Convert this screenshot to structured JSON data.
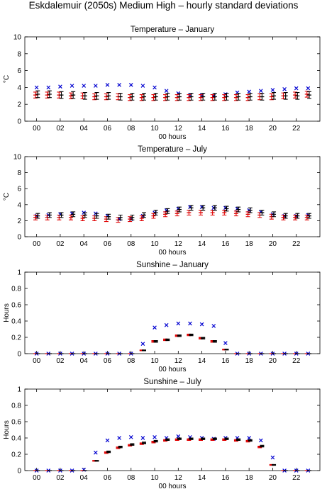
{
  "title": "Eskdalemuir (2050s) Medium High – hourly standard deviations",
  "colors": {
    "blue": "#0000d0",
    "red": "#e00000",
    "black": "#000000",
    "axis": "#000000"
  },
  "chart_data": [
    {
      "type": "scatter",
      "title": "Temperature – January",
      "xlabel": "00 hours",
      "ylabel": "°C",
      "xlim": [
        -1,
        24
      ],
      "ylim": [
        0,
        10
      ],
      "yticks": [
        0,
        2,
        4,
        6,
        8,
        10
      ],
      "xtick_labels": [
        "00",
        "02",
        "04",
        "06",
        "08",
        "10",
        "12",
        "14",
        "16",
        "18",
        "20",
        "22"
      ],
      "hours": [
        0,
        1,
        2,
        3,
        4,
        5,
        6,
        7,
        8,
        9,
        10,
        11,
        12,
        13,
        14,
        15,
        16,
        17,
        18,
        19,
        20,
        21,
        22,
        23
      ],
      "series": [
        {
          "marker": "x",
          "color": "blue",
          "values": [
            4.0,
            4.0,
            4.1,
            4.2,
            4.2,
            4.2,
            4.3,
            4.3,
            4.3,
            4.2,
            4.0,
            3.6,
            3.3,
            3.1,
            3.1,
            3.0,
            3.2,
            3.4,
            3.5,
            3.6,
            3.7,
            3.8,
            3.9,
            3.9
          ]
        },
        {
          "marker": "errorbar",
          "color": "red",
          "values": [
            3.1,
            3.1,
            3.1,
            3.0,
            3.0,
            2.9,
            2.9,
            2.9,
            2.8,
            2.8,
            2.8,
            2.8,
            2.8,
            2.8,
            2.8,
            2.8,
            2.8,
            2.8,
            2.8,
            2.9,
            2.9,
            3.0,
            3.1,
            3.2
          ],
          "errors": [
            0.35,
            0.35,
            0.35,
            0.35,
            0.35,
            0.35,
            0.35,
            0.35,
            0.35,
            0.35,
            0.35,
            0.35,
            0.35,
            0.35,
            0.35,
            0.35,
            0.35,
            0.35,
            0.35,
            0.35,
            0.35,
            0.35,
            0.35,
            0.35
          ]
        },
        {
          "marker": "errorbar",
          "color": "black",
          "values": [
            3.2,
            3.2,
            3.1,
            3.1,
            3.0,
            3.0,
            3.0,
            2.9,
            2.9,
            2.9,
            2.9,
            2.9,
            2.9,
            2.9,
            2.9,
            2.9,
            2.9,
            2.9,
            2.9,
            2.9,
            3.0,
            3.0,
            3.0,
            3.1
          ],
          "errors": [
            0.4,
            0.4,
            0.4,
            0.4,
            0.4,
            0.4,
            0.4,
            0.4,
            0.4,
            0.4,
            0.4,
            0.4,
            0.4,
            0.4,
            0.4,
            0.4,
            0.4,
            0.4,
            0.4,
            0.4,
            0.4,
            0.4,
            0.4,
            0.4
          ]
        }
      ]
    },
    {
      "type": "scatter",
      "title": "Temperature – July",
      "xlabel": "00 hours",
      "ylabel": "°C",
      "xlim": [
        -1,
        24
      ],
      "ylim": [
        0,
        10
      ],
      "yticks": [
        0,
        2,
        4,
        6,
        8,
        10
      ],
      "xtick_labels": [
        "00",
        "02",
        "04",
        "06",
        "08",
        "10",
        "12",
        "14",
        "16",
        "18",
        "20",
        "22"
      ],
      "hours": [
        0,
        1,
        2,
        3,
        4,
        5,
        6,
        7,
        8,
        9,
        10,
        11,
        12,
        13,
        14,
        15,
        16,
        17,
        18,
        19,
        20,
        21,
        22,
        23
      ],
      "series": [
        {
          "marker": "x",
          "color": "blue",
          "values": [
            2.6,
            2.7,
            2.8,
            2.9,
            3.0,
            2.9,
            2.6,
            2.2,
            2.2,
            2.6,
            3.0,
            3.3,
            3.5,
            3.7,
            3.7,
            3.6,
            3.6,
            3.5,
            3.3,
            3.1,
            2.8,
            2.6,
            2.6,
            2.7
          ]
        },
        {
          "marker": "errorbar",
          "color": "red",
          "values": [
            2.4,
            2.4,
            2.4,
            2.4,
            2.3,
            2.3,
            2.2,
            2.1,
            2.2,
            2.3,
            2.6,
            2.8,
            2.9,
            3.0,
            3.0,
            3.0,
            3.0,
            2.9,
            2.8,
            2.7,
            2.5,
            2.4,
            2.4,
            2.4
          ],
          "errors": [
            0.3,
            0.3,
            0.3,
            0.3,
            0.3,
            0.3,
            0.3,
            0.3,
            0.3,
            0.3,
            0.3,
            0.3,
            0.3,
            0.3,
            0.3,
            0.3,
            0.3,
            0.3,
            0.3,
            0.3,
            0.3,
            0.3,
            0.3,
            0.3
          ]
        },
        {
          "marker": "errorbar",
          "color": "black",
          "values": [
            2.6,
            2.7,
            2.7,
            2.8,
            2.7,
            2.6,
            2.5,
            2.4,
            2.4,
            2.7,
            3.0,
            3.2,
            3.4,
            3.6,
            3.6,
            3.6,
            3.5,
            3.4,
            3.3,
            3.0,
            2.8,
            2.6,
            2.6,
            2.6
          ],
          "errors": [
            0.3,
            0.3,
            0.3,
            0.3,
            0.3,
            0.3,
            0.3,
            0.3,
            0.3,
            0.3,
            0.3,
            0.3,
            0.3,
            0.3,
            0.3,
            0.3,
            0.3,
            0.3,
            0.3,
            0.3,
            0.3,
            0.3,
            0.3,
            0.3
          ]
        }
      ]
    },
    {
      "type": "scatter",
      "title": "Sunshine – January",
      "xlabel": "00 hours",
      "ylabel": "Hours",
      "xlim": [
        -1,
        24
      ],
      "ylim": [
        0,
        1
      ],
      "yticks": [
        0,
        0.2,
        0.4,
        0.6,
        0.8,
        1
      ],
      "xtick_labels": [
        "00",
        "02",
        "04",
        "06",
        "08",
        "10",
        "12",
        "14",
        "16",
        "18",
        "20",
        "22"
      ],
      "hours": [
        0,
        1,
        2,
        3,
        4,
        5,
        6,
        7,
        8,
        9,
        10,
        11,
        12,
        13,
        14,
        15,
        16,
        17,
        18,
        19,
        20,
        21,
        22,
        23
      ],
      "series": [
        {
          "marker": "x",
          "color": "blue",
          "values": [
            0,
            0,
            0,
            0,
            0,
            0,
            0,
            0,
            0,
            0.12,
            0.32,
            0.35,
            0.37,
            0.37,
            0.36,
            0.34,
            0.13,
            0,
            0,
            0,
            0,
            0,
            0,
            0
          ]
        },
        {
          "marker": "errorbar",
          "color": "red",
          "values": [
            0,
            0,
            0,
            0,
            0,
            0,
            0,
            0,
            0,
            0.04,
            0.15,
            0.17,
            0.22,
            0.23,
            0.19,
            0.15,
            0.05,
            0,
            0,
            0,
            0,
            0,
            0,
            0
          ],
          "errors": [
            0,
            0,
            0,
            0,
            0,
            0,
            0,
            0,
            0,
            0.005,
            0.01,
            0.01,
            0.01,
            0.01,
            0.01,
            0.01,
            0.005,
            0,
            0,
            0,
            0,
            0,
            0,
            0
          ]
        },
        {
          "marker": "errorbar",
          "color": "black",
          "values": [
            0,
            0,
            0,
            0,
            0,
            0,
            0,
            0,
            0,
            0.04,
            0.15,
            0.17,
            0.22,
            0.23,
            0.19,
            0.15,
            0.05,
            0,
            0,
            0,
            0,
            0,
            0,
            0
          ],
          "errors": [
            0,
            0,
            0,
            0,
            0,
            0,
            0,
            0,
            0,
            0.005,
            0.01,
            0.01,
            0.01,
            0.01,
            0.01,
            0.01,
            0.005,
            0,
            0,
            0,
            0,
            0,
            0,
            0
          ]
        }
      ]
    },
    {
      "type": "scatter",
      "title": "Sunshine – July",
      "xlabel": "00 hours",
      "ylabel": "Hours",
      "xlim": [
        -1,
        24
      ],
      "ylim": [
        0,
        1
      ],
      "yticks": [
        0,
        0.2,
        0.4,
        0.6,
        0.8,
        1
      ],
      "xtick_labels": [
        "00",
        "02",
        "04",
        "06",
        "08",
        "10",
        "12",
        "14",
        "16",
        "18",
        "20",
        "22"
      ],
      "hours": [
        0,
        1,
        2,
        3,
        4,
        5,
        6,
        7,
        8,
        9,
        10,
        11,
        12,
        13,
        14,
        15,
        16,
        17,
        18,
        19,
        20,
        21,
        22,
        23
      ],
      "series": [
        {
          "marker": "x",
          "color": "blue",
          "values": [
            0,
            0,
            0,
            0,
            0.01,
            0.22,
            0.37,
            0.4,
            0.41,
            0.4,
            0.41,
            0.4,
            0.42,
            0.41,
            0.4,
            0.39,
            0.4,
            0.4,
            0.4,
            0.37,
            0.16,
            0,
            0,
            0
          ]
        },
        {
          "marker": "errorbar",
          "color": "red",
          "values": [
            0,
            0,
            0,
            0,
            0,
            0.12,
            0.22,
            0.28,
            0.31,
            0.33,
            0.35,
            0.37,
            0.38,
            0.38,
            0.38,
            0.38,
            0.38,
            0.37,
            0.36,
            0.29,
            0.07,
            0,
            0,
            0
          ],
          "errors": [
            0,
            0,
            0,
            0,
            0,
            0.005,
            0.01,
            0.01,
            0.01,
            0.01,
            0.01,
            0.01,
            0.01,
            0.01,
            0.01,
            0.01,
            0.01,
            0.01,
            0.01,
            0.01,
            0.005,
            0,
            0,
            0
          ]
        },
        {
          "marker": "errorbar",
          "color": "black",
          "values": [
            0,
            0,
            0,
            0,
            0,
            0.12,
            0.23,
            0.29,
            0.32,
            0.34,
            0.36,
            0.38,
            0.39,
            0.39,
            0.39,
            0.39,
            0.39,
            0.38,
            0.37,
            0.3,
            0.07,
            0,
            0,
            0
          ],
          "errors": [
            0,
            0,
            0,
            0,
            0,
            0.005,
            0.01,
            0.01,
            0.01,
            0.01,
            0.01,
            0.01,
            0.01,
            0.01,
            0.01,
            0.01,
            0.01,
            0.01,
            0.01,
            0.01,
            0.005,
            0,
            0,
            0
          ]
        }
      ]
    }
  ]
}
